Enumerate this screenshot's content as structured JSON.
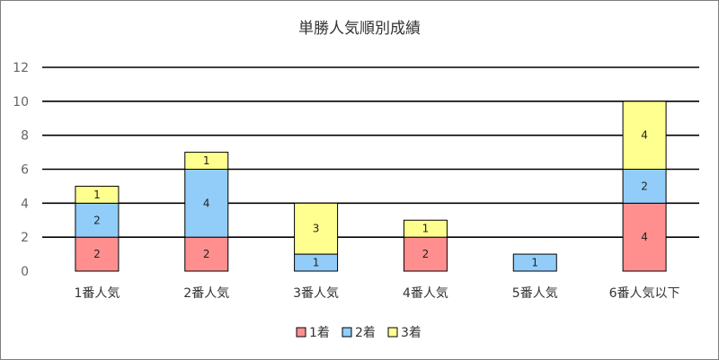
{
  "chart_data": {
    "type": "bar",
    "stacked": true,
    "title": "単勝人気順別成績",
    "xlabel": "",
    "ylabel": "",
    "categories": [
      "1番人気",
      "2番人気",
      "3番人気",
      "4番人気",
      "5番人気",
      "6番人気以下"
    ],
    "series": [
      {
        "name": "1着",
        "color": "#ff8f8f",
        "values": [
          2,
          2,
          0,
          2,
          0,
          4
        ]
      },
      {
        "name": "2着",
        "color": "#92cdf9",
        "values": [
          2,
          4,
          1,
          0,
          1,
          2
        ]
      },
      {
        "name": "3着",
        "color": "#ffff8f",
        "values": [
          1,
          1,
          3,
          1,
          0,
          4
        ]
      }
    ],
    "ylim": [
      0,
      12
    ],
    "yticks": [
      0,
      2,
      4,
      6,
      8,
      10,
      12
    ],
    "grid": true,
    "legend_position": "bottom"
  }
}
